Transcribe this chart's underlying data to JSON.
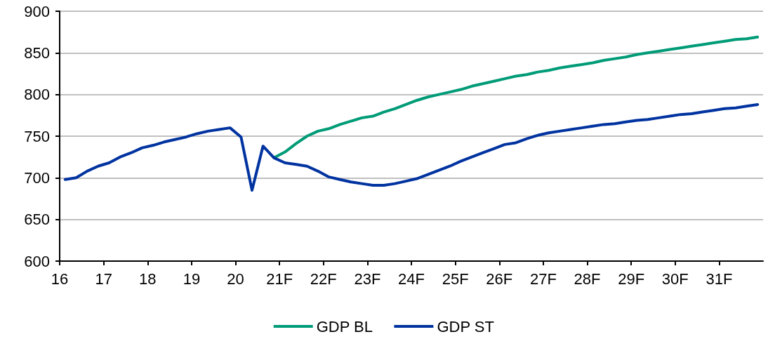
{
  "chart_data": {
    "type": "line",
    "x": [
      16.125,
      16.375,
      16.625,
      16.875,
      17.125,
      17.375,
      17.625,
      17.875,
      18.125,
      18.375,
      18.625,
      18.875,
      19.125,
      19.375,
      19.625,
      19.875,
      20.125,
      20.375,
      20.625,
      20.875,
      21.125,
      21.375,
      21.625,
      21.875,
      22.125,
      22.375,
      22.625,
      22.875,
      23.125,
      23.375,
      23.625,
      23.875,
      24.125,
      24.375,
      24.625,
      24.875,
      25.125,
      25.375,
      25.625,
      25.875,
      26.125,
      26.375,
      26.625,
      26.875,
      27.125,
      27.375,
      27.625,
      27.875,
      28.125,
      28.375,
      28.625,
      28.875,
      29.125,
      29.375,
      29.625,
      29.875,
      30.125,
      30.375,
      30.625,
      30.875,
      31.125,
      31.375,
      31.625,
      31.875
    ],
    "series": [
      {
        "name": "GDP BL",
        "color": "#009b77",
        "values": [
          null,
          null,
          null,
          null,
          null,
          null,
          null,
          null,
          null,
          null,
          null,
          null,
          null,
          null,
          null,
          null,
          null,
          null,
          null,
          724,
          731,
          741,
          750,
          756,
          759,
          764,
          768,
          772,
          774,
          779,
          783,
          788,
          793,
          797,
          800,
          803,
          806,
          810,
          813,
          816,
          819,
          822,
          824,
          827,
          829,
          832,
          834,
          836,
          838,
          841,
          843,
          845,
          848,
          850,
          852,
          854,
          856,
          858,
          860,
          862,
          864,
          866,
          867,
          869
        ]
      },
      {
        "name": "GDP ST",
        "color": "#0033a0",
        "values": [
          698,
          700,
          708,
          714,
          718,
          725,
          730,
          736,
          739,
          743,
          746,
          749,
          753,
          756,
          758,
          760,
          749,
          685,
          738,
          724,
          718,
          716,
          714,
          708,
          701,
          698,
          695,
          693,
          691,
          691,
          693,
          696,
          699,
          704,
          709,
          714,
          720,
          725,
          730,
          735,
          740,
          742,
          747,
          751,
          754,
          756,
          758,
          760,
          762,
          764,
          765,
          767,
          769,
          770,
          772,
          774,
          776,
          777,
          779,
          781,
          783,
          784,
          786,
          788
        ]
      }
    ],
    "xlim": [
      16,
      32
    ],
    "xticks": [
      16,
      17,
      18,
      19,
      20,
      {
        "value": 21,
        "label": "21F"
      },
      {
        "value": 22,
        "label": "22F"
      },
      {
        "value": 23,
        "label": "23F"
      },
      {
        "value": 24,
        "label": "24F"
      },
      {
        "value": 25,
        "label": "25F"
      },
      {
        "value": 26,
        "label": "26F"
      },
      {
        "value": 27,
        "label": "27F"
      },
      {
        "value": 28,
        "label": "28F"
      },
      {
        "value": 29,
        "label": "29F"
      },
      {
        "value": 30,
        "label": "30F"
      },
      {
        "value": 31,
        "label": "31F"
      }
    ],
    "ylim": [
      600,
      900
    ],
    "yticks": [
      600,
      650,
      700,
      750,
      800,
      850,
      900
    ],
    "grid": "y",
    "legend": "bottom",
    "marker": "none",
    "line_style": "solid"
  }
}
